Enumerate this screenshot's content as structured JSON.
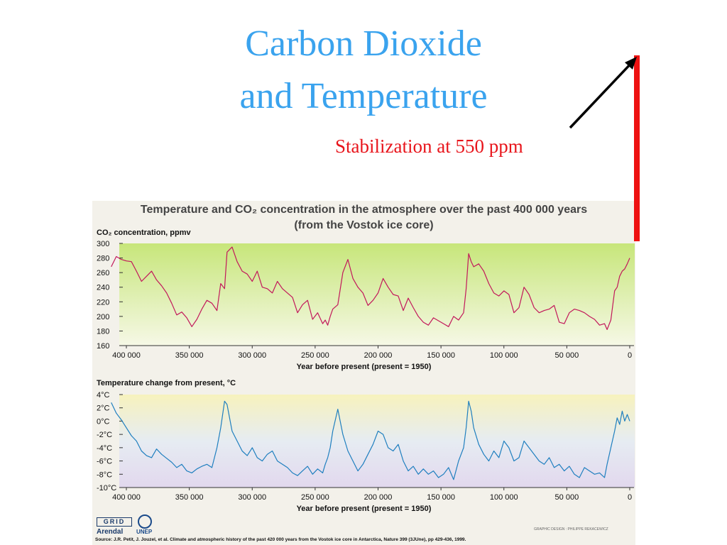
{
  "slide": {
    "title_line1": "Carbon Dioxide",
    "title_line2": "and Temperature",
    "annotation": "Stabilization at 550 ppm"
  },
  "figure": {
    "title_line1": "Temperature and CO₂ concentration in the atmosphere over the past 400 000 years",
    "title_line2": "(from the Vostok ice core)",
    "logo_grid": "GRID",
    "logo_arendal": "Arendal",
    "logo_unep": "UNEP",
    "credit": "GRAPHIC DESIGN : PHILIPPE REKACEWICZ",
    "source": "Source: J.R. Petit, J. Jouzel, et al. Climate and atmospheric history of the past 420 000 years from the Vostok ice core in Antarctica, Nature 399 (3JUne), pp 429-436, 1999."
  },
  "colors": {
    "title": "#3aa3ee",
    "annotation": "#e8141b",
    "co2_line": "#c2185b",
    "temp_line": "#1f7fbf",
    "arrow": "#000000",
    "bar": "#ee1111"
  },
  "chart_data": [
    {
      "type": "line",
      "title": "Temperature and CO₂ concentration in the atmosphere over the past 400 000 years",
      "ylabel": "CO₂ concentration, ppmv",
      "xlabel": "Year before present (present = 1950)",
      "xlim": [
        400000,
        0
      ],
      "ylim": [
        160,
        300
      ],
      "xticks": [
        "400 000",
        "350 000",
        "300 000",
        "250 000",
        "200 000",
        "150 000",
        "100 000",
        "50 000",
        "0"
      ],
      "yticks": [
        "300",
        "280",
        "260",
        "240",
        "220",
        "200",
        "180",
        "160"
      ],
      "series": [
        {
          "x": [
            412000,
            408000,
            404000,
            400000,
            396000,
            392000,
            388000,
            384000,
            380000,
            376000,
            372000,
            368000,
            364000,
            360000,
            356000,
            352000,
            348000,
            344000,
            340000,
            336000,
            332000,
            328000,
            325000,
            322000,
            320000,
            316000,
            312000,
            308000,
            304000,
            300000,
            296000,
            292000,
            288000,
            284000,
            280000,
            276000,
            272000,
            268000,
            264000,
            260000,
            256000,
            252000,
            248000,
            244000,
            242000,
            240000,
            238000,
            236000,
            232000,
            228000,
            224000,
            220000,
            216000,
            212000,
            208000,
            204000,
            200000,
            196000,
            192000,
            188000,
            184000,
            180000,
            176000,
            172000,
            168000,
            164000,
            160000,
            156000,
            152000,
            148000,
            144000,
            140000,
            136000,
            132000,
            130000,
            128000,
            126000,
            124000,
            120000,
            116000,
            112000,
            108000,
            104000,
            100000,
            96000,
            92000,
            88000,
            84000,
            80000,
            76000,
            72000,
            68000,
            64000,
            60000,
            56000,
            52000,
            48000,
            44000,
            40000,
            36000,
            32000,
            28000,
            24000,
            20000,
            18000,
            15000,
            12000,
            10000,
            8000,
            6000,
            4000,
            2000,
            0
          ],
          "y": [
            268,
            282,
            278,
            276,
            275,
            262,
            248,
            255,
            262,
            250,
            242,
            232,
            218,
            202,
            206,
            198,
            186,
            196,
            210,
            222,
            218,
            208,
            245,
            238,
            288,
            295,
            275,
            262,
            258,
            248,
            262,
            240,
            238,
            232,
            248,
            238,
            232,
            226,
            205,
            216,
            222,
            196,
            205,
            190,
            195,
            188,
            200,
            210,
            216,
            260,
            278,
            252,
            240,
            232,
            215,
            222,
            232,
            252,
            240,
            230,
            228,
            208,
            225,
            212,
            200,
            192,
            188,
            198,
            194,
            190,
            186,
            200,
            195,
            205,
            238,
            286,
            275,
            268,
            272,
            262,
            245,
            232,
            228,
            235,
            230,
            205,
            212,
            240,
            230,
            212,
            205,
            208,
            210,
            215,
            192,
            190,
            205,
            210,
            208,
            205,
            200,
            196,
            188,
            190,
            182,
            195,
            235,
            240,
            255,
            262,
            265,
            272,
            280
          ]
        }
      ]
    },
    {
      "type": "line",
      "ylabel": "Temperature change from present, °C",
      "xlabel": "Year before present (present = 1950)",
      "xlim": [
        400000,
        0
      ],
      "ylim": [
        -10,
        4
      ],
      "xticks": [
        "400 000",
        "350 000",
        "300 000",
        "250 000",
        "200 000",
        "150 000",
        "100 000",
        "50 000",
        "0"
      ],
      "yticks": [
        "4°C",
        "2°C",
        "0°C",
        "-2°C",
        "-4°C",
        "-6°C",
        "-8°C",
        "-10°C"
      ],
      "series": [
        {
          "x": [
            412000,
            408000,
            404000,
            400000,
            396000,
            392000,
            388000,
            384000,
            380000,
            376000,
            372000,
            368000,
            364000,
            360000,
            356000,
            352000,
            348000,
            344000,
            340000,
            336000,
            332000,
            328000,
            325000,
            322000,
            320000,
            316000,
            312000,
            308000,
            304000,
            300000,
            296000,
            292000,
            288000,
            284000,
            280000,
            276000,
            272000,
            268000,
            264000,
            260000,
            256000,
            252000,
            248000,
            244000,
            242000,
            240000,
            238000,
            236000,
            232000,
            228000,
            224000,
            220000,
            216000,
            212000,
            208000,
            204000,
            200000,
            196000,
            192000,
            188000,
            184000,
            180000,
            176000,
            172000,
            168000,
            164000,
            160000,
            156000,
            152000,
            148000,
            144000,
            140000,
            136000,
            132000,
            130000,
            128000,
            126000,
            124000,
            120000,
            116000,
            112000,
            108000,
            104000,
            100000,
            96000,
            92000,
            88000,
            84000,
            80000,
            76000,
            72000,
            68000,
            64000,
            60000,
            56000,
            52000,
            48000,
            44000,
            40000,
            36000,
            32000,
            28000,
            24000,
            20000,
            18000,
            15000,
            12000,
            10000,
            8000,
            6000,
            4000,
            2000,
            0
          ],
          "y": [
            2.8,
            1.2,
            0.2,
            -1.0,
            -2.2,
            -3.0,
            -4.5,
            -5.2,
            -5.5,
            -4.2,
            -5.0,
            -5.6,
            -6.2,
            -7.0,
            -6.5,
            -7.5,
            -7.8,
            -7.2,
            -6.8,
            -6.5,
            -7.0,
            -4.0,
            -1.0,
            3.0,
            2.5,
            -1.5,
            -3.0,
            -4.5,
            -5.2,
            -4.0,
            -5.5,
            -6.0,
            -5.0,
            -4.5,
            -6.0,
            -6.5,
            -7.0,
            -7.8,
            -8.2,
            -7.5,
            -6.8,
            -8.0,
            -7.2,
            -7.8,
            -6.5,
            -5.5,
            -4.0,
            -1.5,
            1.8,
            -2.0,
            -4.5,
            -6.0,
            -7.5,
            -6.5,
            -5.0,
            -3.5,
            -1.5,
            -2.0,
            -4.0,
            -4.5,
            -3.5,
            -6.0,
            -7.5,
            -6.8,
            -8.0,
            -7.2,
            -8.0,
            -7.5,
            -8.5,
            -8.0,
            -7.0,
            -8.8,
            -6.0,
            -4.0,
            -1.0,
            3.0,
            1.5,
            -1.0,
            -3.5,
            -5.0,
            -6.0,
            -4.5,
            -5.5,
            -3.0,
            -4.0,
            -6.0,
            -5.5,
            -3.0,
            -4.0,
            -5.0,
            -6.0,
            -6.5,
            -5.5,
            -7.0,
            -6.5,
            -7.5,
            -6.8,
            -8.0,
            -8.5,
            -7.0,
            -7.5,
            -8.0,
            -7.8,
            -8.5,
            -6.5,
            -4.0,
            -1.5,
            0.5,
            -0.5,
            1.5,
            0.0,
            1.0,
            0.0
          ]
        }
      ]
    }
  ]
}
